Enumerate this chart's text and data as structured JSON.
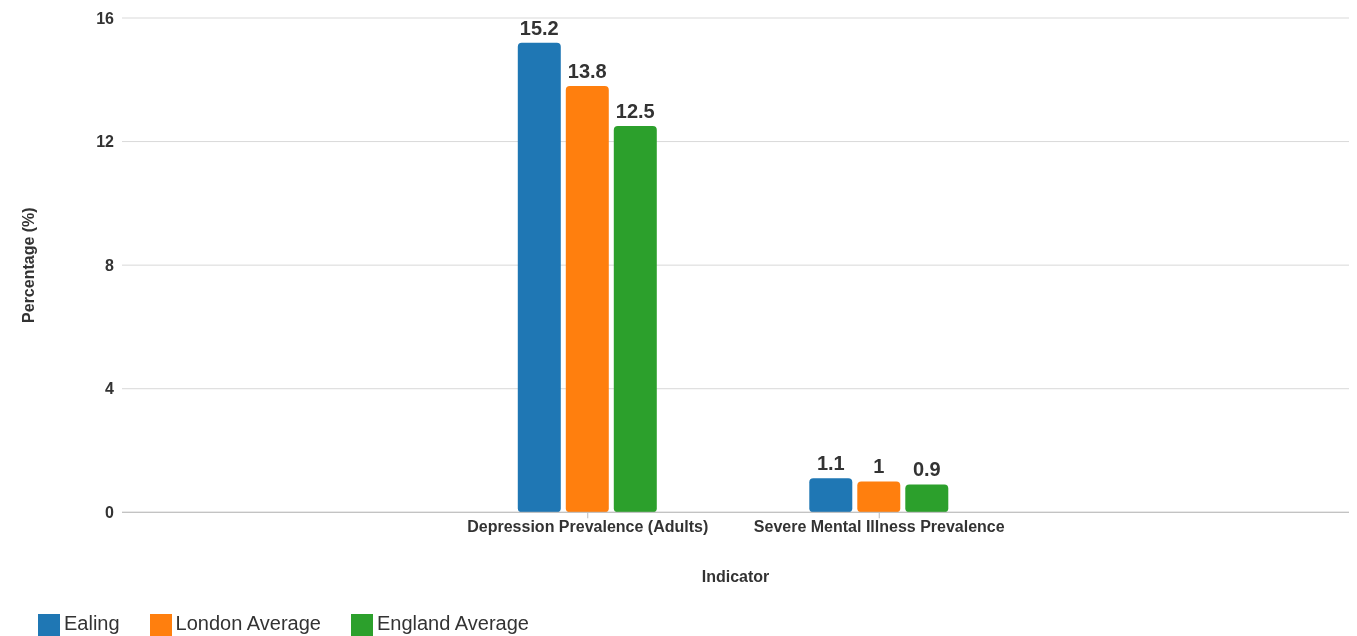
{
  "chart_data": {
    "type": "bar",
    "xlabel": "Indicator",
    "ylabel": "Percentage (%)",
    "categories": [
      "Depression Prevalence (Adults)",
      "Severe Mental Illness Prevalence"
    ],
    "series": [
      {
        "name": "Ealing",
        "color": "#1f77b4",
        "values": [
          15.2,
          1.1
        ]
      },
      {
        "name": "London Average",
        "color": "#ff7f0e",
        "values": [
          13.8,
          1
        ]
      },
      {
        "name": "England Average",
        "color": "#2ca02c",
        "values": [
          12.5,
          0.9
        ]
      }
    ],
    "ylim": [
      0,
      16
    ],
    "yticks": [
      0,
      4,
      8,
      12,
      16
    ],
    "grid": "y",
    "legend": "bottom",
    "data_labels": true
  }
}
